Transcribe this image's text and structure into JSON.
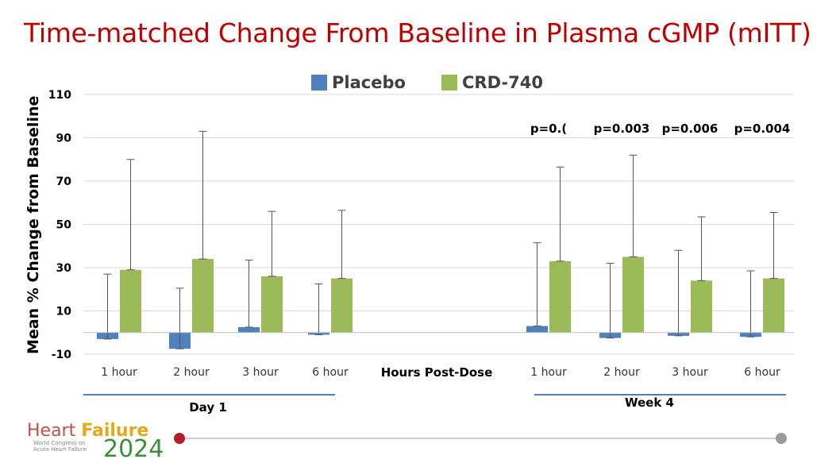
{
  "title": "Time-matched Change From Baseline in Plasma cGMP (mITT)",
  "chart_data": {
    "type": "bar",
    "ylabel": "Mean % Change from Baseline",
    "xlabel": "Hours Post-Dose",
    "ylim": [
      -10,
      110
    ],
    "yticks": [
      -10,
      10,
      30,
      50,
      70,
      90,
      110
    ],
    "grid": true,
    "legend_position": "top-center",
    "groups": [
      {
        "label": "Day 1",
        "categories": [
          "1 hour",
          "2 hour",
          "3 hour",
          "6 hour"
        ]
      },
      {
        "label": "Week 4",
        "categories": [
          "1 hour",
          "2 hour",
          "3 hour",
          "6 hour"
        ]
      }
    ],
    "series": [
      {
        "name": "Placebo",
        "color": "#4f81bd",
        "values": [
          -3,
          -7.5,
          2.5,
          -1,
          3,
          -2.5,
          -1.5,
          -2
        ],
        "error_upper": [
          27,
          20.5,
          33.5,
          22.5,
          41.5,
          32,
          38,
          28.5
        ]
      },
      {
        "name": "CRD-740",
        "color": "#9bbb59",
        "values": [
          29,
          34,
          26,
          25,
          33,
          35,
          24,
          25
        ],
        "error_upper": [
          80,
          93,
          56,
          56.5,
          76.5,
          82,
          53.5,
          55.5
        ]
      }
    ],
    "annotations": [
      {
        "category_index": 4,
        "text": "p=0.("
      },
      {
        "category_index": 5,
        "text": "p=0.003"
      },
      {
        "category_index": 6,
        "text": "p=0.006"
      },
      {
        "category_index": 7,
        "text": "p=0.004"
      }
    ]
  }
}
